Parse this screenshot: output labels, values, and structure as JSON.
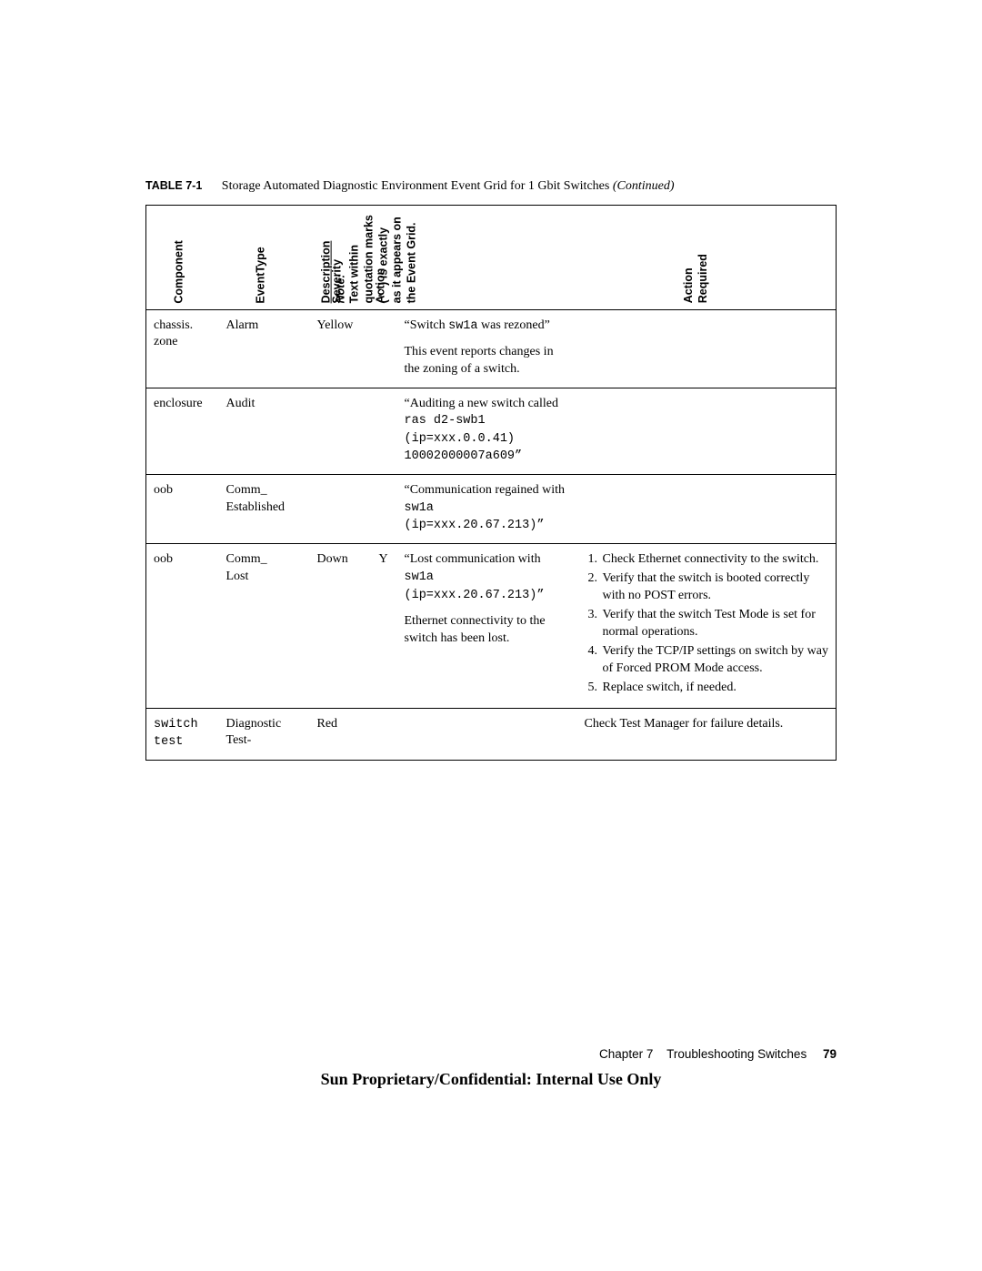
{
  "caption": {
    "label": "TABLE 7-1",
    "text": "Storage Automated Diagnostic Environment Event Grid for 1 Gbit Switches ",
    "cont": "(Continued)"
  },
  "headers": {
    "component": "Component",
    "eventtype": "EventType",
    "severity": "Severity",
    "action": "Action",
    "description_head": "Description",
    "description_note_label": "Note:",
    "description_note_body": "Text within\nquotation marks\n(\" \") is exactly\nas it appears on\nthe Event Grid.",
    "action_required_l1": "Action",
    "action_required_l2": "Required"
  },
  "rows": [
    {
      "component": "chassis.\nzone",
      "eventtype": "Alarm",
      "severity": "Yellow",
      "action": "",
      "descr_quote_pre": "“Switch ",
      "descr_quote_mono": "sw1a",
      "descr_quote_post": " was rezoned”",
      "descr_para2": "This event reports changes in the zoning of a switch.",
      "action_required_html": ""
    },
    {
      "component": "enclosure",
      "eventtype": "Audit",
      "severity": "",
      "action": "",
      "descr_quote_pre": "“Auditing a new switch called ",
      "descr_quote_mono": "ras d2-swb1 (ip=xxx.0.0.41) 10002000007a609”",
      "descr_quote_post": "",
      "descr_para2": "",
      "action_required_html": ""
    },
    {
      "component": "oob",
      "eventtype": "Comm_\nEstablished",
      "severity": "",
      "action": "",
      "descr_quote_pre": "“Communication regained with ",
      "descr_quote_mono": "sw1a\n(ip=xxx.20.67.213)”",
      "descr_quote_post": "",
      "descr_para2": "",
      "action_required_html": ""
    },
    {
      "component": "oob",
      "eventtype": "Comm_\nLost",
      "severity": "Down",
      "action": "Y",
      "descr_quote_pre": "“Lost communication with ",
      "descr_quote_mono": "sw1a\n(ip=xxx.20.67.213)”",
      "descr_quote_post": "",
      "descr_para2": "Ethernet connectivity to the switch has been lost.",
      "action_required_list": [
        "Check Ethernet connectivity to the switch.",
        "Verify that the switch is booted correctly with no POST errors.",
        "Verify that the switch Test Mode is set for normal operations.",
        "Verify the TCP/IP settings on switch by way of Forced PROM Mode access.",
        "Replace switch, if needed."
      ]
    },
    {
      "component_mono": "switch\ntest",
      "eventtype": "Diagnostic\nTest-",
      "severity": "Red",
      "action": "",
      "descr_quote_pre": "",
      "descr_quote_mono": "",
      "descr_quote_post": "",
      "descr_para2": "",
      "action_required_text": "Check Test Manager for failure details."
    }
  ],
  "footer": {
    "chapter": "Chapter 7",
    "title": "Troubleshooting Switches",
    "page": "79",
    "confidential": "Sun Proprietary/Confidential: Internal Use Only"
  }
}
